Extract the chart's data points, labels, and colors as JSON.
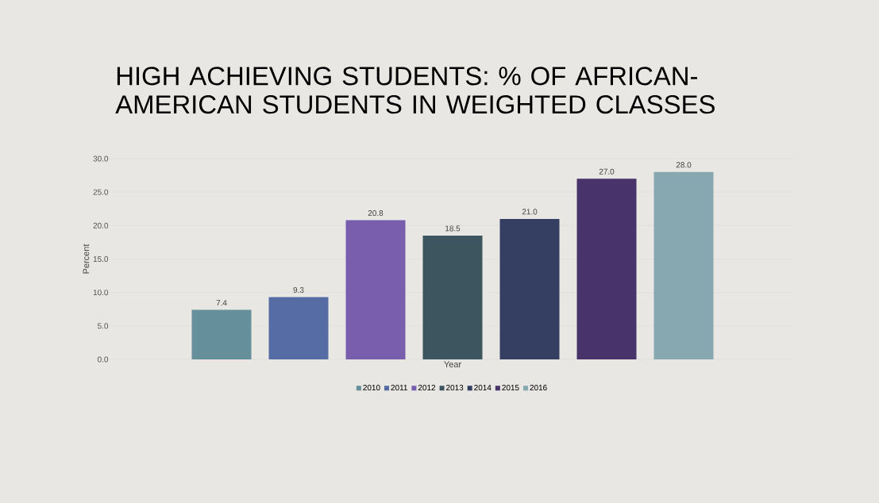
{
  "chart_data": {
    "type": "bar",
    "title": "HIGH ACHIEVING STUDENTS: % OF AFRICAN-AMERICAN STUDENTS IN WEIGHTED CLASSES",
    "xlabel": "Year",
    "ylabel": "Percent",
    "categories": [
      null
    ],
    "series": [
      {
        "name": "2010",
        "color": "#668f9c",
        "values": [
          7.4
        ],
        "value_labels": [
          "7.4"
        ]
      },
      {
        "name": "2011",
        "color": "#566ca4",
        "values": [
          9.3
        ],
        "value_labels": [
          "9.3"
        ]
      },
      {
        "name": "2012",
        "color": "#795eae",
        "values": [
          20.8
        ],
        "value_labels": [
          "20.8"
        ]
      },
      {
        "name": "2013",
        "color": "#3d555e",
        "values": [
          18.5
        ],
        "value_labels": [
          "18.5"
        ]
      },
      {
        "name": "2014",
        "color": "#343f62",
        "values": [
          21.0
        ],
        "value_labels": [
          "21.0"
        ]
      },
      {
        "name": "2015",
        "color": "#48336b",
        "values": [
          27.0
        ],
        "value_labels": [
          "27.0"
        ]
      },
      {
        "name": "2016",
        "color": "#87a7b1",
        "values": [
          28.0
        ],
        "value_labels": [
          "28.0"
        ]
      }
    ],
    "ylim": [
      0,
      30
    ],
    "yticks": [
      {
        "value": 0,
        "label": "0.0"
      },
      {
        "value": 5,
        "label": "5.0"
      },
      {
        "value": 10,
        "label": "10.0"
      },
      {
        "value": 15,
        "label": "15.0"
      },
      {
        "value": 20,
        "label": "20.0"
      },
      {
        "value": 25,
        "label": "25.0"
      },
      {
        "value": 30,
        "label": "30.0"
      }
    ],
    "grid": "y",
    "legend": "bottom"
  }
}
